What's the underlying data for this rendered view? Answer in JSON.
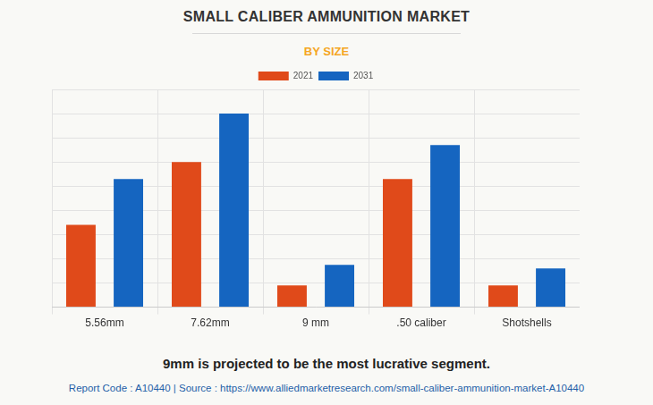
{
  "chart_data": {
    "type": "bar",
    "title": "SMALL CALIBER AMMUNITION MARKET",
    "subtitle": "BY SIZE",
    "categories": [
      "5.56mm",
      "7.62mm",
      "9 mm",
      ".50 caliber",
      "Shotshells"
    ],
    "series": [
      {
        "name": "2021",
        "color": "#e04a1a",
        "values": [
          3.4,
          6.0,
          0.9,
          5.3,
          0.9
        ]
      },
      {
        "name": "2031",
        "color": "#1565c0",
        "values": [
          5.3,
          8.0,
          1.75,
          6.7,
          1.6
        ]
      }
    ],
    "ylim": [
      0,
      9
    ],
    "yticks": [
      0,
      1,
      2,
      3,
      4,
      5,
      6,
      7,
      8,
      9
    ],
    "grid": true,
    "legend": "top",
    "tick_labels": "x",
    "annotations": [
      "9mm is projected to be the most lucrative segment.",
      "Report Code : A10440  |  Source : https://www.alliedmarketresearch.com/small-caliber-ammunition-market-A10440"
    ]
  }
}
